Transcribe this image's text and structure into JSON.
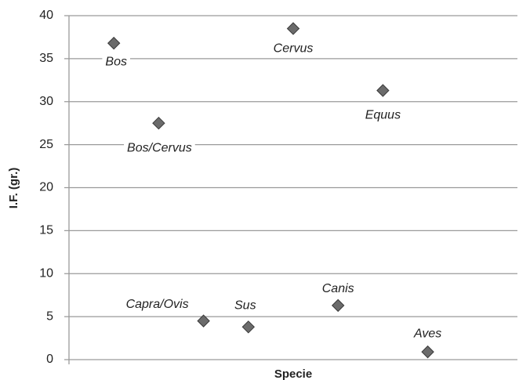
{
  "chart_data": {
    "type": "scatter",
    "x_label": "Specie",
    "y_label": "I.F. (gr.)",
    "labels": [
      "Bos",
      "Bos/Cervus",
      "Capra/Ovis",
      "Sus",
      "Cervus",
      "Canis",
      "Equus",
      "Aves"
    ],
    "x": [
      1,
      2,
      3,
      4,
      5,
      6,
      7,
      8
    ],
    "values": [
      36.8,
      27.5,
      4.5,
      3.8,
      38.5,
      6.3,
      31.3,
      0.9
    ],
    "color": "#6b6b6b",
    "xlim": [
      0,
      10
    ],
    "ylim": [
      0,
      40
    ],
    "yticks": [
      0,
      5,
      10,
      15,
      20,
      25,
      30,
      35,
      40
    ],
    "grid": true
  }
}
